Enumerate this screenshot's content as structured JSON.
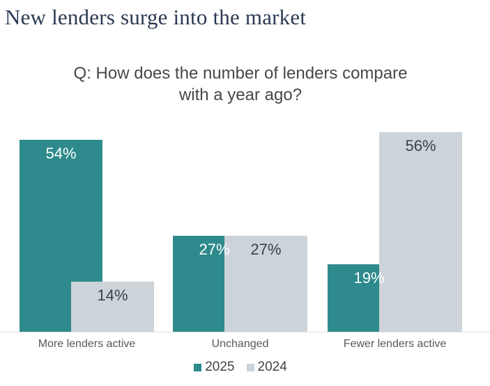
{
  "page": {
    "title": "New lenders surge into the market"
  },
  "chart": {
    "subtitle_lines": [
      "Q: How does the number of lenders compare",
      "with a year ago?"
    ]
  },
  "colors": {
    "title_text": "#2b3a52",
    "subtitle_text": "#45484b",
    "axis_line": "#e2e2e2",
    "series_2025": "#2e8a8c",
    "series_2024": "#ccd4da"
  },
  "chart_data": {
    "type": "bar",
    "title": "Q: How does the number of lenders compare with a year ago?",
    "categories": [
      "More lenders active",
      "Unchanged",
      "Fewer lenders active"
    ],
    "series": [
      {
        "name": "2025",
        "color": "#2e8a8c",
        "label_color": "#ffffff",
        "values": [
          54,
          27,
          19
        ]
      },
      {
        "name": "2024",
        "color": "#ccd4da",
        "label_color": "#3b4043",
        "values": [
          14,
          27,
          56
        ]
      }
    ],
    "value_suffix": "%",
    "xlabel": "",
    "ylabel": "",
    "ylim": [
      0,
      57
    ],
    "grid": false,
    "bar_style": "overlapping",
    "legend_position": "bottom"
  }
}
